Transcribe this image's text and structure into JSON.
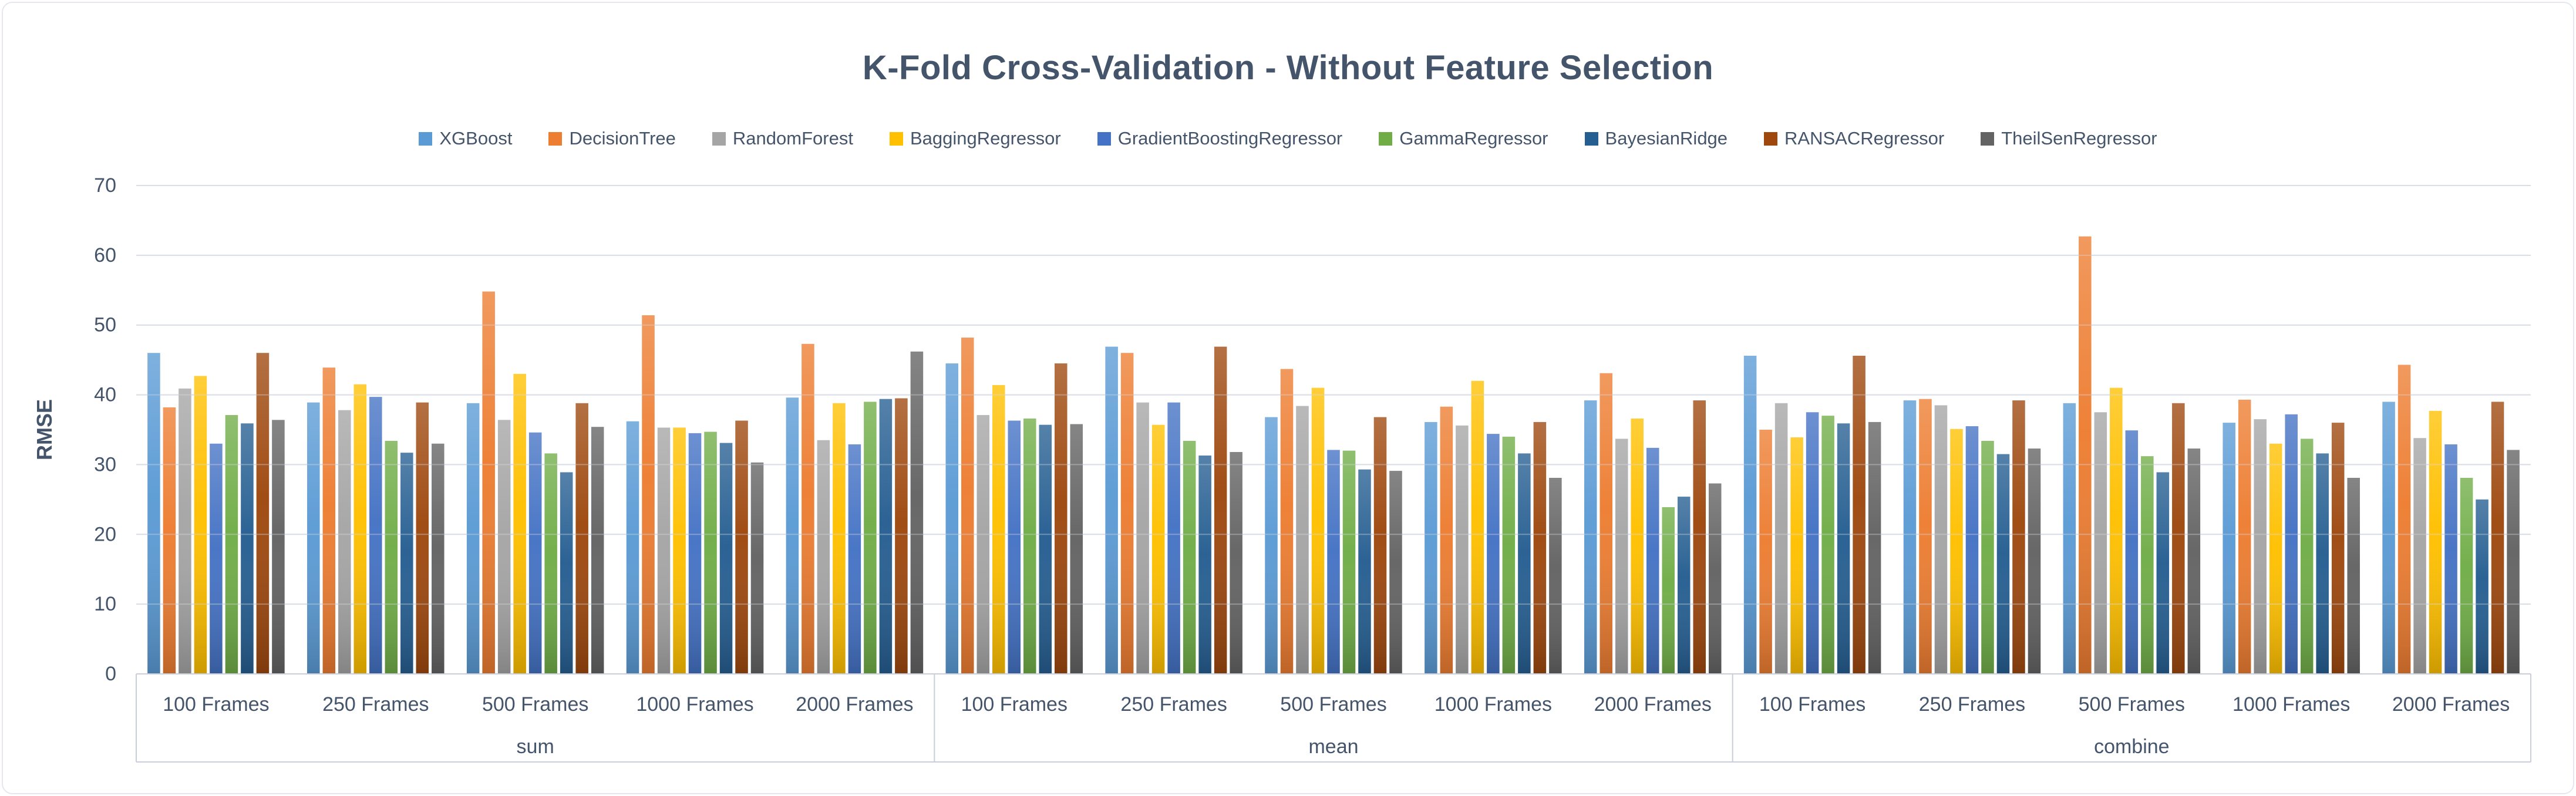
{
  "chart_data": {
    "type": "bar",
    "title": "K-Fold Cross-Validation - Without Feature Selection",
    "ylabel": "RMSE",
    "ylim": [
      0,
      70
    ],
    "ytick_step": 10,
    "yticks": [
      0,
      10,
      20,
      30,
      40,
      50,
      60,
      70
    ],
    "grid": "horizontal",
    "legend_position": "top",
    "sections": [
      "sum",
      "mean",
      "combine"
    ],
    "categories_per_section": [
      "100 Frames",
      "250 Frames",
      "500 Frames",
      "1000 Frames",
      "2000 Frames"
    ],
    "group_order_note": "values arrays are ordered: sum 100/250/500/1000/2000, mean 100/250/500/1000/2000, combine 100/250/500/1000/2000",
    "colors": {
      "title_text": "#44546A",
      "axis_text": "#44546A",
      "gridline": "#D9DDE6",
      "axis_line": "#C9CEDA",
      "frame_border": "#E4E8EE"
    },
    "series": [
      {
        "name": "XGBoost",
        "color": "#5B9BD5",
        "values": [
          46.0,
          38.9,
          38.8,
          36.2,
          39.6,
          44.5,
          46.9,
          36.8,
          36.1,
          39.2,
          45.6,
          39.2,
          38.8,
          36.0,
          39.0
        ]
      },
      {
        "name": "DecisionTree",
        "color": "#ED7D31",
        "values": [
          38.2,
          43.9,
          54.8,
          51.4,
          47.3,
          48.2,
          46.0,
          43.7,
          38.3,
          43.1,
          35.0,
          39.4,
          62.7,
          39.3,
          44.3
        ]
      },
      {
        "name": "RandomForest",
        "color": "#A5A5A5",
        "values": [
          40.9,
          37.8,
          36.4,
          35.3,
          33.5,
          37.1,
          38.9,
          38.4,
          35.6,
          33.7,
          38.8,
          38.5,
          37.5,
          36.5,
          33.8
        ]
      },
      {
        "name": "BaggingRegressor",
        "color": "#FFC000",
        "values": [
          42.7,
          41.5,
          43.0,
          35.3,
          38.8,
          41.4,
          35.7,
          41.0,
          42.0,
          36.6,
          33.9,
          35.1,
          41.0,
          33.0,
          37.7
        ]
      },
      {
        "name": "GradientBoostingRegressor",
        "color": "#4472C4",
        "values": [
          33.0,
          39.7,
          34.6,
          34.5,
          32.9,
          36.3,
          38.9,
          32.1,
          34.4,
          32.4,
          37.5,
          35.5,
          34.9,
          37.2,
          32.9
        ]
      },
      {
        "name": "GammaRegressor",
        "color": "#70AD47",
        "values": [
          37.1,
          33.4,
          31.6,
          34.7,
          39.0,
          36.6,
          33.4,
          32.0,
          34.0,
          23.9,
          37.0,
          33.4,
          31.2,
          33.7,
          28.1
        ]
      },
      {
        "name": "BayesianRidge",
        "color": "#255E91",
        "values": [
          35.9,
          31.7,
          28.9,
          33.1,
          39.4,
          35.7,
          31.3,
          29.3,
          31.6,
          25.4,
          35.9,
          31.5,
          28.9,
          31.6,
          25.0
        ]
      },
      {
        "name": "RANSACRegressor",
        "color": "#9E480E",
        "values": [
          46.0,
          38.9,
          38.8,
          36.3,
          39.5,
          44.5,
          46.9,
          36.8,
          36.1,
          39.2,
          45.6,
          39.2,
          38.8,
          36.0,
          39.0
        ]
      },
      {
        "name": "TheilSenRegressor",
        "color": "#636363",
        "values": [
          36.4,
          33.0,
          35.4,
          30.3,
          46.2,
          35.8,
          31.8,
          29.1,
          28.1,
          27.3,
          36.1,
          32.3,
          32.3,
          28.1,
          32.1
        ]
      }
    ]
  }
}
